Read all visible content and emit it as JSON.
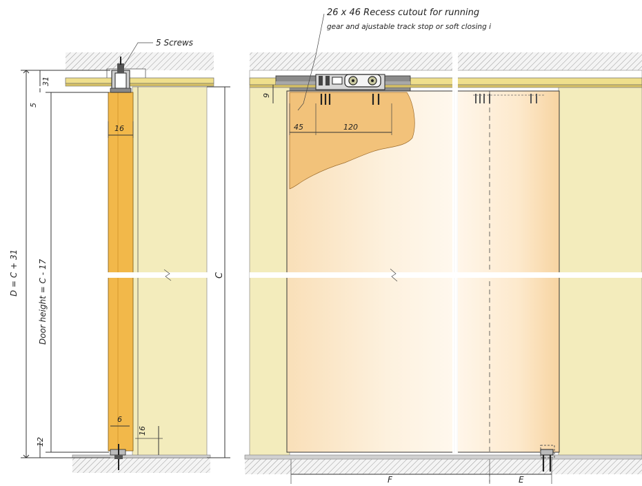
{
  "annotations": {
    "screws": "5 Screws",
    "recess_line1": "26 x 46 Recess cutout for running",
    "recess_line2": "gear and ajustable track stop or soft closing i"
  },
  "dimensions": {
    "d_total": "D = C + 31",
    "door_height": "Door height = C - 17",
    "c": "C",
    "top_31": "31",
    "top_5": "5",
    "width_16": "16",
    "bottom_12": "12",
    "bottom_6": "6",
    "bottom_16": "16",
    "front_9": "9",
    "front_45": "45",
    "front_120": "120",
    "f": "F",
    "e": "E"
  },
  "colors": {
    "wall": "#f3ecbc",
    "door_edge": "#f2b84a",
    "door_face": "#fbe4c4",
    "track": "#8a8a8a",
    "cutout": "#f2c27a"
  }
}
